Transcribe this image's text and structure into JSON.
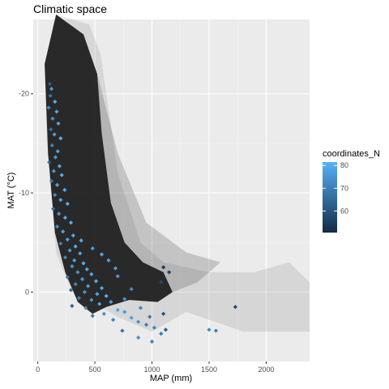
{
  "chart_data": {
    "type": "scatter",
    "title": "Climatic space",
    "xlabel": "MAP (mm)",
    "ylabel": "MAT (°C)",
    "xlim": [
      -40,
      2380
    ],
    "ylim": [
      -27.5,
      7
    ],
    "y_reversed": true,
    "x_ticks": [
      0,
      500,
      1000,
      1500,
      2000
    ],
    "x_tick_labels": [
      "0",
      "500",
      "1000",
      "1500",
      "2000"
    ],
    "y_ticks": [
      -20,
      -10,
      0
    ],
    "y_tick_labels": [
      "-20",
      "-10",
      "0"
    ],
    "grid": true,
    "background_cloud": {
      "description": "dense dark-grey density cloud of background grid cells",
      "color": "#1c1c1c",
      "outline_min_temp": [
        [
          160,
          -28
        ],
        [
          450,
          -27
        ],
        [
          550,
          -24
        ],
        [
          600,
          -20
        ],
        [
          700,
          -12
        ],
        [
          900,
          -5
        ],
        [
          1100,
          -3
        ],
        [
          1500,
          -2
        ],
        [
          1900,
          -2
        ],
        [
          2200,
          -3
        ],
        [
          2380,
          -1
        ],
        [
          2380,
          4
        ],
        [
          1800,
          4
        ],
        [
          1300,
          2
        ],
        [
          1000,
          4
        ],
        [
          700,
          2.5
        ],
        [
          400,
          0.5
        ],
        [
          300,
          0
        ],
        [
          160,
          -4
        ],
        [
          80,
          -15
        ],
        [
          60,
          -23
        ]
      ]
    },
    "legend": {
      "title": "coordinates_N",
      "type": "colorbar",
      "position": "right",
      "breaks": [
        60,
        70,
        80
      ],
      "break_labels": [
        "60",
        "70",
        "80"
      ],
      "range": [
        50.5,
        81.5
      ],
      "color_low": "#132B43",
      "color_high": "#56B1F7"
    },
    "series": [
      {
        "marker": "diamond",
        "points": [
          [
            105,
            -21,
            62
          ],
          [
            120,
            -20.5,
            76
          ],
          [
            110,
            -19.8,
            68
          ],
          [
            150,
            -19.2,
            80
          ],
          [
            95,
            -18.6,
            72
          ],
          [
            165,
            -18.2,
            78
          ],
          [
            130,
            -17.5,
            74
          ],
          [
            180,
            -17,
            79
          ],
          [
            115,
            -16.4,
            66
          ],
          [
            145,
            -15.9,
            77
          ],
          [
            200,
            -15.5,
            80
          ],
          [
            125,
            -14.8,
            70
          ],
          [
            175,
            -14.2,
            78
          ],
          [
            155,
            -13.6,
            76
          ],
          [
            100,
            -13.1,
            64
          ],
          [
            190,
            -12.7,
            79
          ],
          [
            140,
            -12.2,
            75
          ],
          [
            210,
            -11.8,
            80
          ],
          [
            120,
            -11.2,
            68
          ],
          [
            170,
            -10.8,
            77
          ],
          [
            235,
            -10.3,
            79
          ],
          [
            150,
            -9.8,
            72
          ],
          [
            200,
            -9.3,
            78
          ],
          [
            260,
            -8.9,
            80
          ],
          [
            135,
            -8.4,
            66
          ],
          [
            185,
            -7.9,
            76
          ],
          [
            240,
            -7.5,
            79
          ],
          [
            290,
            -7,
            80
          ],
          [
            170,
            -6.6,
            73
          ],
          [
            220,
            -6.1,
            77
          ],
          [
            310,
            -5.7,
            79
          ],
          [
            260,
            -5.3,
            78
          ],
          [
            200,
            -4.9,
            70
          ],
          [
            330,
            -4.6,
            80
          ],
          [
            280,
            -4.2,
            76
          ],
          [
            370,
            -3.9,
            79
          ],
          [
            240,
            -3.5,
            72
          ],
          [
            320,
            -3.2,
            77
          ],
          [
            400,
            -2.9,
            80
          ],
          [
            300,
            -2.6,
            75
          ],
          [
            430,
            -2.3,
            78
          ],
          [
            350,
            -2,
            74
          ],
          [
            470,
            -1.8,
            79
          ],
          [
            260,
            -1.5,
            68
          ],
          [
            390,
            -1.3,
            76
          ],
          [
            510,
            -1.1,
            80
          ],
          [
            330,
            -0.8,
            71
          ],
          [
            440,
            -0.6,
            77
          ],
          [
            560,
            -0.4,
            79
          ],
          [
            290,
            -0.2,
            66
          ],
          [
            410,
            0,
            74
          ],
          [
            520,
            0.2,
            78
          ],
          [
            600,
            0.4,
            80
          ],
          [
            360,
            0.6,
            70
          ],
          [
            470,
            0.8,
            75
          ],
          [
            640,
            1,
            77
          ],
          [
            540,
            1.2,
            79
          ],
          [
            300,
            1.4,
            64
          ],
          [
            420,
            1.6,
            72
          ],
          [
            700,
            1.8,
            78
          ],
          [
            760,
            2,
            76
          ],
          [
            580,
            2.2,
            74
          ],
          [
            480,
            2.4,
            69
          ],
          [
            820,
            2.6,
            77
          ],
          [
            660,
            2.8,
            72
          ],
          [
            880,
            3,
            74
          ],
          [
            950,
            3.3,
            70
          ],
          [
            1020,
            3.6,
            72
          ],
          [
            740,
            3.9,
            66
          ],
          [
            1080,
            4.2,
            69
          ],
          [
            1120,
            3.8,
            62
          ],
          [
            1100,
            2.2,
            60
          ],
          [
            1080,
            -1,
            58
          ],
          [
            1100,
            -2.5,
            54
          ],
          [
            1150,
            -2,
            56
          ],
          [
            1000,
            5,
            71
          ],
          [
            1500,
            3.8,
            73
          ],
          [
            1560,
            3.9,
            70
          ],
          [
            1730,
            1.5,
            58
          ],
          [
            880,
            4.6,
            74
          ],
          [
            620,
            -3.2,
            78
          ],
          [
            700,
            -1.6,
            76
          ],
          [
            560,
            -3.8,
            79
          ],
          [
            480,
            -4.4,
            77
          ],
          [
            380,
            -5.2,
            80
          ],
          [
            760,
            0.7,
            75
          ],
          [
            820,
            -0.3,
            73
          ],
          [
            680,
            -2.4,
            77
          ],
          [
            900,
            1.6,
            71
          ],
          [
            980,
            2.5,
            68
          ]
        ]
      }
    ]
  }
}
